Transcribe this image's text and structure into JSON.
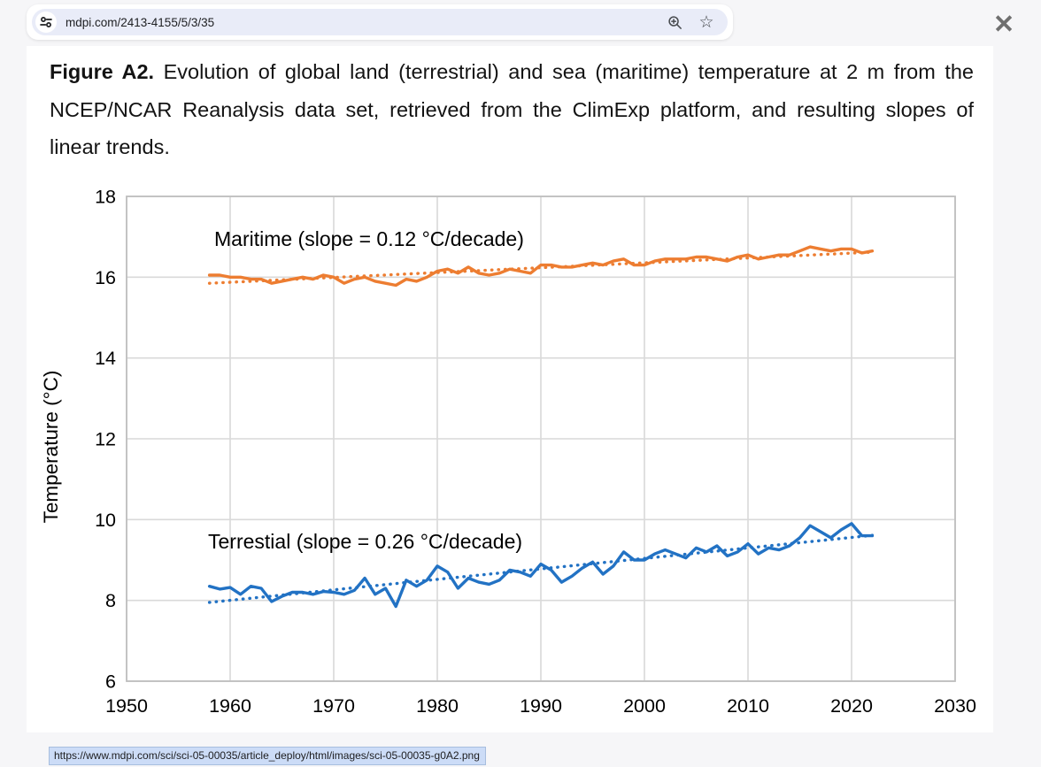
{
  "browser": {
    "address_bar": {
      "url": "mdpi.com/2413-4155/5/3/35"
    },
    "close_glyph": "✕",
    "star_glyph": "☆"
  },
  "caption": {
    "label": "Figure A2.",
    "body": " Evolution of global land (terrestrial) and sea (maritime) temperature at 2 m from the NCEP/NCAR Reanalysis data set, retrieved from the ClimExp platform, and resulting slopes of linear trends."
  },
  "status_bar": {
    "url": "https://www.mdpi.com/sci/sci-05-00035/article_deploy/html/images/sci-05-00035-g0A2.png"
  },
  "chart_data": {
    "type": "line",
    "title": "",
    "xlabel": "",
    "ylabel": "Temperature (°C)",
    "xlim": [
      1950,
      2030
    ],
    "ylim": [
      6,
      18
    ],
    "xticks": [
      1950,
      1960,
      1970,
      1980,
      1990,
      2000,
      2010,
      2020,
      2030
    ],
    "yticks": [
      6,
      8,
      10,
      12,
      14,
      16,
      18
    ],
    "grid": true,
    "legend_position": "inline-annotations",
    "x_start_year": 1958,
    "x_end_year": 2022,
    "frame_color": "#bfbfbf",
    "grid_color": "#d9d9d9",
    "series": [
      {
        "name": "Maritime",
        "annotation": "Maritime (slope = 0.12 °C/decade)",
        "slope_c_per_decade": 0.12,
        "color": "#ED7D31",
        "trend": {
          "start": 15.85,
          "end": 16.62
        },
        "values": [
          16.05,
          16.05,
          16.0,
          16.0,
          15.95,
          15.95,
          15.85,
          15.9,
          15.95,
          16.0,
          15.95,
          16.05,
          16.0,
          15.85,
          15.95,
          16.0,
          15.9,
          15.85,
          15.8,
          15.95,
          15.9,
          16.0,
          16.15,
          16.2,
          16.1,
          16.25,
          16.1,
          16.05,
          16.1,
          16.2,
          16.15,
          16.1,
          16.3,
          16.3,
          16.25,
          16.25,
          16.3,
          16.35,
          16.3,
          16.4,
          16.45,
          16.3,
          16.3,
          16.4,
          16.45,
          16.45,
          16.45,
          16.5,
          16.5,
          16.45,
          16.4,
          16.5,
          16.55,
          16.45,
          16.5,
          16.55,
          16.55,
          16.65,
          16.75,
          16.7,
          16.65,
          16.7,
          16.7,
          16.6,
          16.65
        ]
      },
      {
        "name": "Terrestial",
        "annotation": "Terrestial (slope = 0.26 °C/decade)",
        "slope_c_per_decade": 0.26,
        "color": "#2272C4",
        "trend": {
          "start": 7.95,
          "end": 9.61
        },
        "values": [
          8.35,
          8.28,
          8.32,
          8.15,
          8.35,
          8.3,
          7.97,
          8.1,
          8.2,
          8.2,
          8.15,
          8.22,
          8.2,
          8.15,
          8.25,
          8.55,
          8.15,
          8.3,
          7.85,
          8.5,
          8.35,
          8.5,
          8.85,
          8.7,
          8.3,
          8.55,
          8.45,
          8.4,
          8.5,
          8.75,
          8.7,
          8.6,
          8.9,
          8.75,
          8.45,
          8.6,
          8.8,
          8.95,
          8.65,
          8.85,
          9.2,
          9.0,
          9.0,
          9.15,
          9.25,
          9.15,
          9.05,
          9.3,
          9.2,
          9.35,
          9.1,
          9.2,
          9.4,
          9.15,
          9.3,
          9.25,
          9.35,
          9.55,
          9.85,
          9.7,
          9.55,
          9.75,
          9.9,
          9.6,
          9.6
        ]
      }
    ]
  }
}
